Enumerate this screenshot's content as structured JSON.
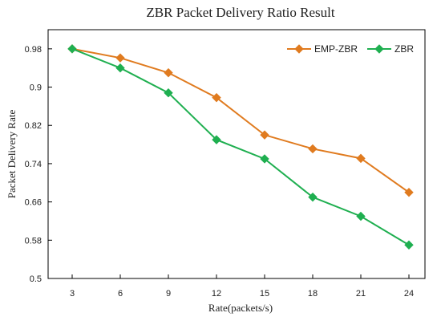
{
  "chart_data": {
    "type": "line",
    "title": "ZBR Packet Delivery Ratio Result",
    "xlabel": "Rate(packets/s)",
    "ylabel": "Packet Delivery Rate",
    "x": [
      3,
      6,
      9,
      12,
      15,
      18,
      21,
      24
    ],
    "x_tick_labels": [
      "3",
      "6",
      "9",
      "12",
      "15",
      "18",
      "21",
      "24"
    ],
    "y_ticks": [
      0.5,
      0.58,
      0.66,
      0.74,
      0.82,
      0.9,
      0.98
    ],
    "y_tick_labels": [
      "0.5",
      "0.58",
      "0.66",
      "0.74",
      "0.82",
      "0.9",
      "0.98"
    ],
    "ylim": [
      0.5,
      1.02
    ],
    "grid": false,
    "legend_position": "top-right",
    "series": [
      {
        "name": "EMP-ZBR",
        "color": "#E07B1F",
        "marker": "diamond",
        "values": [
          0.98,
          0.961,
          0.93,
          0.878,
          0.8,
          0.771,
          0.751,
          0.68
        ]
      },
      {
        "name": "ZBR",
        "color": "#1FAF50",
        "marker": "diamond",
        "values": [
          0.98,
          0.94,
          0.888,
          0.79,
          0.75,
          0.67,
          0.63,
          0.57
        ]
      }
    ]
  }
}
